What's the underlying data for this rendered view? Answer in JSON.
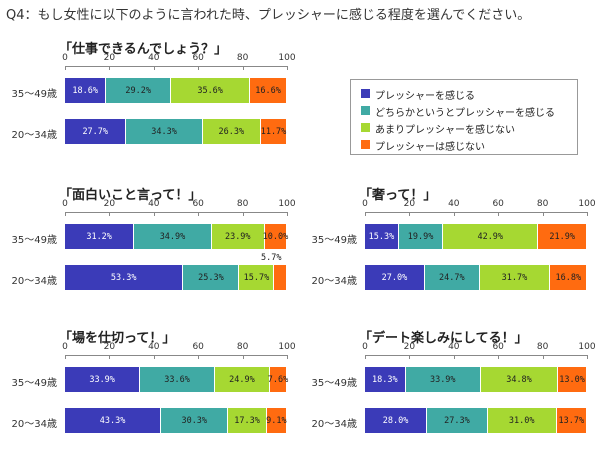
{
  "header": {
    "title": "Q4：もし女性に以下のように言われた時、プレッシャーに感じる程度を選んでください。"
  },
  "legend": [
    {
      "label": "プレッシャーを感じる",
      "color": "#3b3bb8"
    },
    {
      "label": "どちらかというとプレッシャーを感じる",
      "color": "#40aaa4"
    },
    {
      "label": "あまりプレッシャーを感じない",
      "color": "#a6d832"
    },
    {
      "label": "プレッシャーは感じない",
      "color": "#ff6b10"
    }
  ],
  "chart_data": [
    {
      "type": "bar",
      "orientation": "horizontal-stacked-100",
      "title": "「仕事できるんでしょう？」",
      "categories": [
        "35～49歳",
        "20～34歳"
      ],
      "xlim": [
        0,
        100
      ],
      "ticks": [
        0,
        20,
        40,
        60,
        80,
        100
      ],
      "series": [
        {
          "name": "プレッシャーを感じる",
          "values": [
            18.6,
            27.7
          ],
          "labels": [
            "18.6%",
            "27.7%"
          ]
        },
        {
          "name": "どちらかというとプレッシャーを感じる",
          "values": [
            29.2,
            34.3
          ],
          "labels": [
            "29.2%",
            "34.3%"
          ]
        },
        {
          "name": "あまりプレッシャーを感じない",
          "values": [
            35.6,
            26.3
          ],
          "labels": [
            "35.6%",
            "26.3%"
          ]
        },
        {
          "name": "プレッシャーは感じない",
          "values": [
            16.6,
            11.7
          ],
          "labels": [
            "16.6%",
            "11.7%"
          ]
        }
      ]
    },
    {
      "type": "bar",
      "orientation": "horizontal-stacked-100",
      "title": "「面白いこと言って！」",
      "categories": [
        "35～49歳",
        "20～34歳"
      ],
      "xlim": [
        0,
        100
      ],
      "ticks": [
        0,
        20,
        40,
        60,
        80,
        100
      ],
      "series": [
        {
          "name": "プレッシャーを感じる",
          "values": [
            31.2,
            53.3
          ],
          "labels": [
            "31.2%",
            "53.3%"
          ]
        },
        {
          "name": "どちらかというとプレッシャーを感じる",
          "values": [
            34.9,
            25.3
          ],
          "labels": [
            "34.9%",
            "25.3%"
          ]
        },
        {
          "name": "あまりプレッシャーを感じない",
          "values": [
            23.9,
            15.7
          ],
          "labels": [
            "23.9%",
            "15.7%"
          ]
        },
        {
          "name": "プレッシャーは感じない",
          "values": [
            10.0,
            5.7
          ],
          "labels": [
            "10.0%",
            "5.7%"
          ]
        }
      ]
    },
    {
      "type": "bar",
      "orientation": "horizontal-stacked-100",
      "title": "「奢って！」",
      "categories": [
        "35～49歳",
        "20～34歳"
      ],
      "xlim": [
        0,
        100
      ],
      "ticks": [
        0,
        20,
        40,
        60,
        80,
        100
      ],
      "series": [
        {
          "name": "プレッシャーを感じる",
          "values": [
            15.3,
            27.0
          ],
          "labels": [
            "15.3%",
            "27.0%"
          ]
        },
        {
          "name": "どちらかというとプレッシャーを感じる",
          "values": [
            19.9,
            24.7
          ],
          "labels": [
            "19.9%",
            "24.7%"
          ]
        },
        {
          "name": "あまりプレッシャーを感じない",
          "values": [
            42.9,
            31.7
          ],
          "labels": [
            "42.9%",
            "31.7%"
          ]
        },
        {
          "name": "プレッシャーは感じない",
          "values": [
            21.9,
            16.8
          ],
          "labels": [
            "21.9%",
            "16.8%"
          ]
        }
      ]
    },
    {
      "type": "bar",
      "orientation": "horizontal-stacked-100",
      "title": "「場を仕切って！」",
      "categories": [
        "35～49歳",
        "20～34歳"
      ],
      "xlim": [
        0,
        100
      ],
      "ticks": [
        0,
        20,
        40,
        60,
        80,
        100
      ],
      "series": [
        {
          "name": "プレッシャーを感じる",
          "values": [
            33.9,
            43.3
          ],
          "labels": [
            "33.9%",
            "43.3%"
          ]
        },
        {
          "name": "どちらかというとプレッシャーを感じる",
          "values": [
            33.6,
            30.3
          ],
          "labels": [
            "33.6%",
            "30.3%"
          ]
        },
        {
          "name": "あまりプレッシャーを感じない",
          "values": [
            24.9,
            17.3
          ],
          "labels": [
            "24.9%",
            "17.3%"
          ]
        },
        {
          "name": "プレッシャーは感じない",
          "values": [
            7.6,
            9.1
          ],
          "labels": [
            "7.6%",
            "9.1%"
          ]
        }
      ]
    },
    {
      "type": "bar",
      "orientation": "horizontal-stacked-100",
      "title": "「デート楽しみにしてる！」",
      "categories": [
        "35～49歳",
        "20～34歳"
      ],
      "xlim": [
        0,
        100
      ],
      "ticks": [
        0,
        20,
        40,
        60,
        80,
        100
      ],
      "series": [
        {
          "name": "プレッシャーを感じる",
          "values": [
            18.3,
            28.0
          ],
          "labels": [
            "18.3%",
            "28.0%"
          ]
        },
        {
          "name": "どちらかというとプレッシャーを感じる",
          "values": [
            33.9,
            27.3
          ],
          "labels": [
            "33.9%",
            "27.3%"
          ]
        },
        {
          "name": "あまりプレッシャーを感じない",
          "values": [
            34.8,
            31.0
          ],
          "labels": [
            "34.8%",
            "31.0%"
          ]
        },
        {
          "name": "プレッシャーは感じない",
          "values": [
            13.0,
            13.7
          ],
          "labels": [
            "13.0%",
            "13.7%"
          ]
        }
      ]
    }
  ]
}
